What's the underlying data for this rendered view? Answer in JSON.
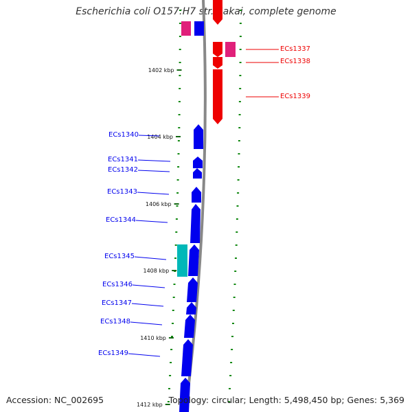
{
  "title": "Escherichia coli O157:H7 str. Sakai, complete genome",
  "accession": "Accession: NC_002695",
  "summary": "Topology: circular; Length: 5,498,450 bp; Genes: 5,369",
  "colors": {
    "forward_gene": "#0000ee",
    "reverse_gene": "#ee0000",
    "forward_rna": "#00b8b8",
    "reverse_rna": "#e0207a",
    "reverse_rna_top": "#ff5fa8",
    "backbone": "#888888",
    "ticks": "#118811",
    "kbp_marks": "#116611"
  },
  "position_marks": [
    {
      "label": "1402 kbp",
      "kbp": 1402
    },
    {
      "label": "1404 kbp",
      "kbp": 1404
    },
    {
      "label": "1406 kbp",
      "kbp": 1406
    },
    {
      "label": "1408 kbp",
      "kbp": 1408
    },
    {
      "label": "1410 kbp",
      "kbp": 1410
    },
    {
      "label": "1412 kbp",
      "kbp": 1412
    }
  ],
  "forward_genes": [
    {
      "label": "ECs1340"
    },
    {
      "label": "ECs1341"
    },
    {
      "label": "ECs1342"
    },
    {
      "label": "ECs1343"
    },
    {
      "label": "ECs1344"
    },
    {
      "label": "ECs1345"
    },
    {
      "label": "ECs1346"
    },
    {
      "label": "ECs1347"
    },
    {
      "label": "ECs1348"
    },
    {
      "label": "ECs1349"
    }
  ],
  "reverse_genes": [
    {
      "label": "ECs1337"
    },
    {
      "label": "ECs1338"
    },
    {
      "label": "ECs1339"
    }
  ]
}
